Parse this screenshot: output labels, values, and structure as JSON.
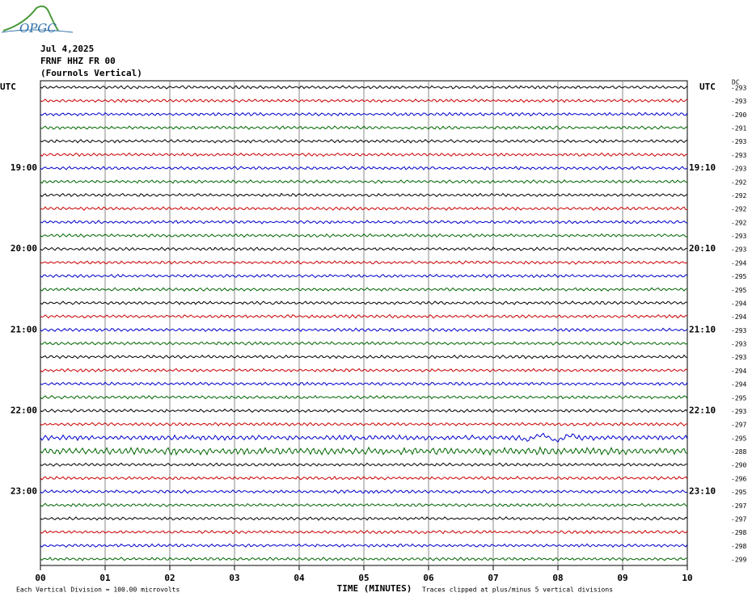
{
  "logo": {
    "text": "OPGC"
  },
  "header": {
    "date": "Jul 4,2025",
    "station": "FRNF HHZ FR 00",
    "location": "(Fournols Vertical)"
  },
  "dc_label": "DC",
  "trace_colors": [
    "#000000",
    "#cc0000",
    "#0000cc",
    "#006600"
  ],
  "left_labels": [
    "UTC",
    null,
    null,
    null,
    null,
    null,
    "19:00",
    null,
    null,
    null,
    null,
    null,
    "20:00",
    null,
    null,
    null,
    null,
    null,
    "21:00",
    null,
    null,
    null,
    null,
    null,
    "22:00",
    null,
    null,
    null,
    null,
    null,
    "23:00",
    null,
    null,
    null,
    null,
    null
  ],
  "right_labels": [
    "UTC",
    null,
    null,
    null,
    null,
    null,
    "19:10",
    null,
    null,
    null,
    null,
    null,
    "20:10",
    null,
    null,
    null,
    null,
    null,
    "21:10",
    null,
    null,
    null,
    null,
    null,
    "22:10",
    null,
    null,
    null,
    null,
    null,
    "23:10",
    null,
    null,
    null,
    null,
    null
  ],
  "dc_values": [
    -293,
    -293,
    -290,
    -291,
    -293,
    -293,
    -293,
    -292,
    -292,
    -292,
    -292,
    -293,
    -293,
    -294,
    -295,
    -295,
    -294,
    -294,
    -293,
    -293,
    -293,
    -294,
    -294,
    -295,
    -293,
    -297,
    -295,
    -288,
    -290,
    -296,
    -295,
    -297,
    -297,
    -298,
    -298,
    -299
  ],
  "x_ticks": [
    "00",
    "01",
    "02",
    "03",
    "04",
    "05",
    "06",
    "07",
    "08",
    "09",
    "10"
  ],
  "footer": {
    "scale": "Each Vertical Division =  100.00 microvolts",
    "x_label": "TIME (MINUTES)",
    "clip_note": "Traces clipped at plus/minus 5 vertical divisions"
  }
}
